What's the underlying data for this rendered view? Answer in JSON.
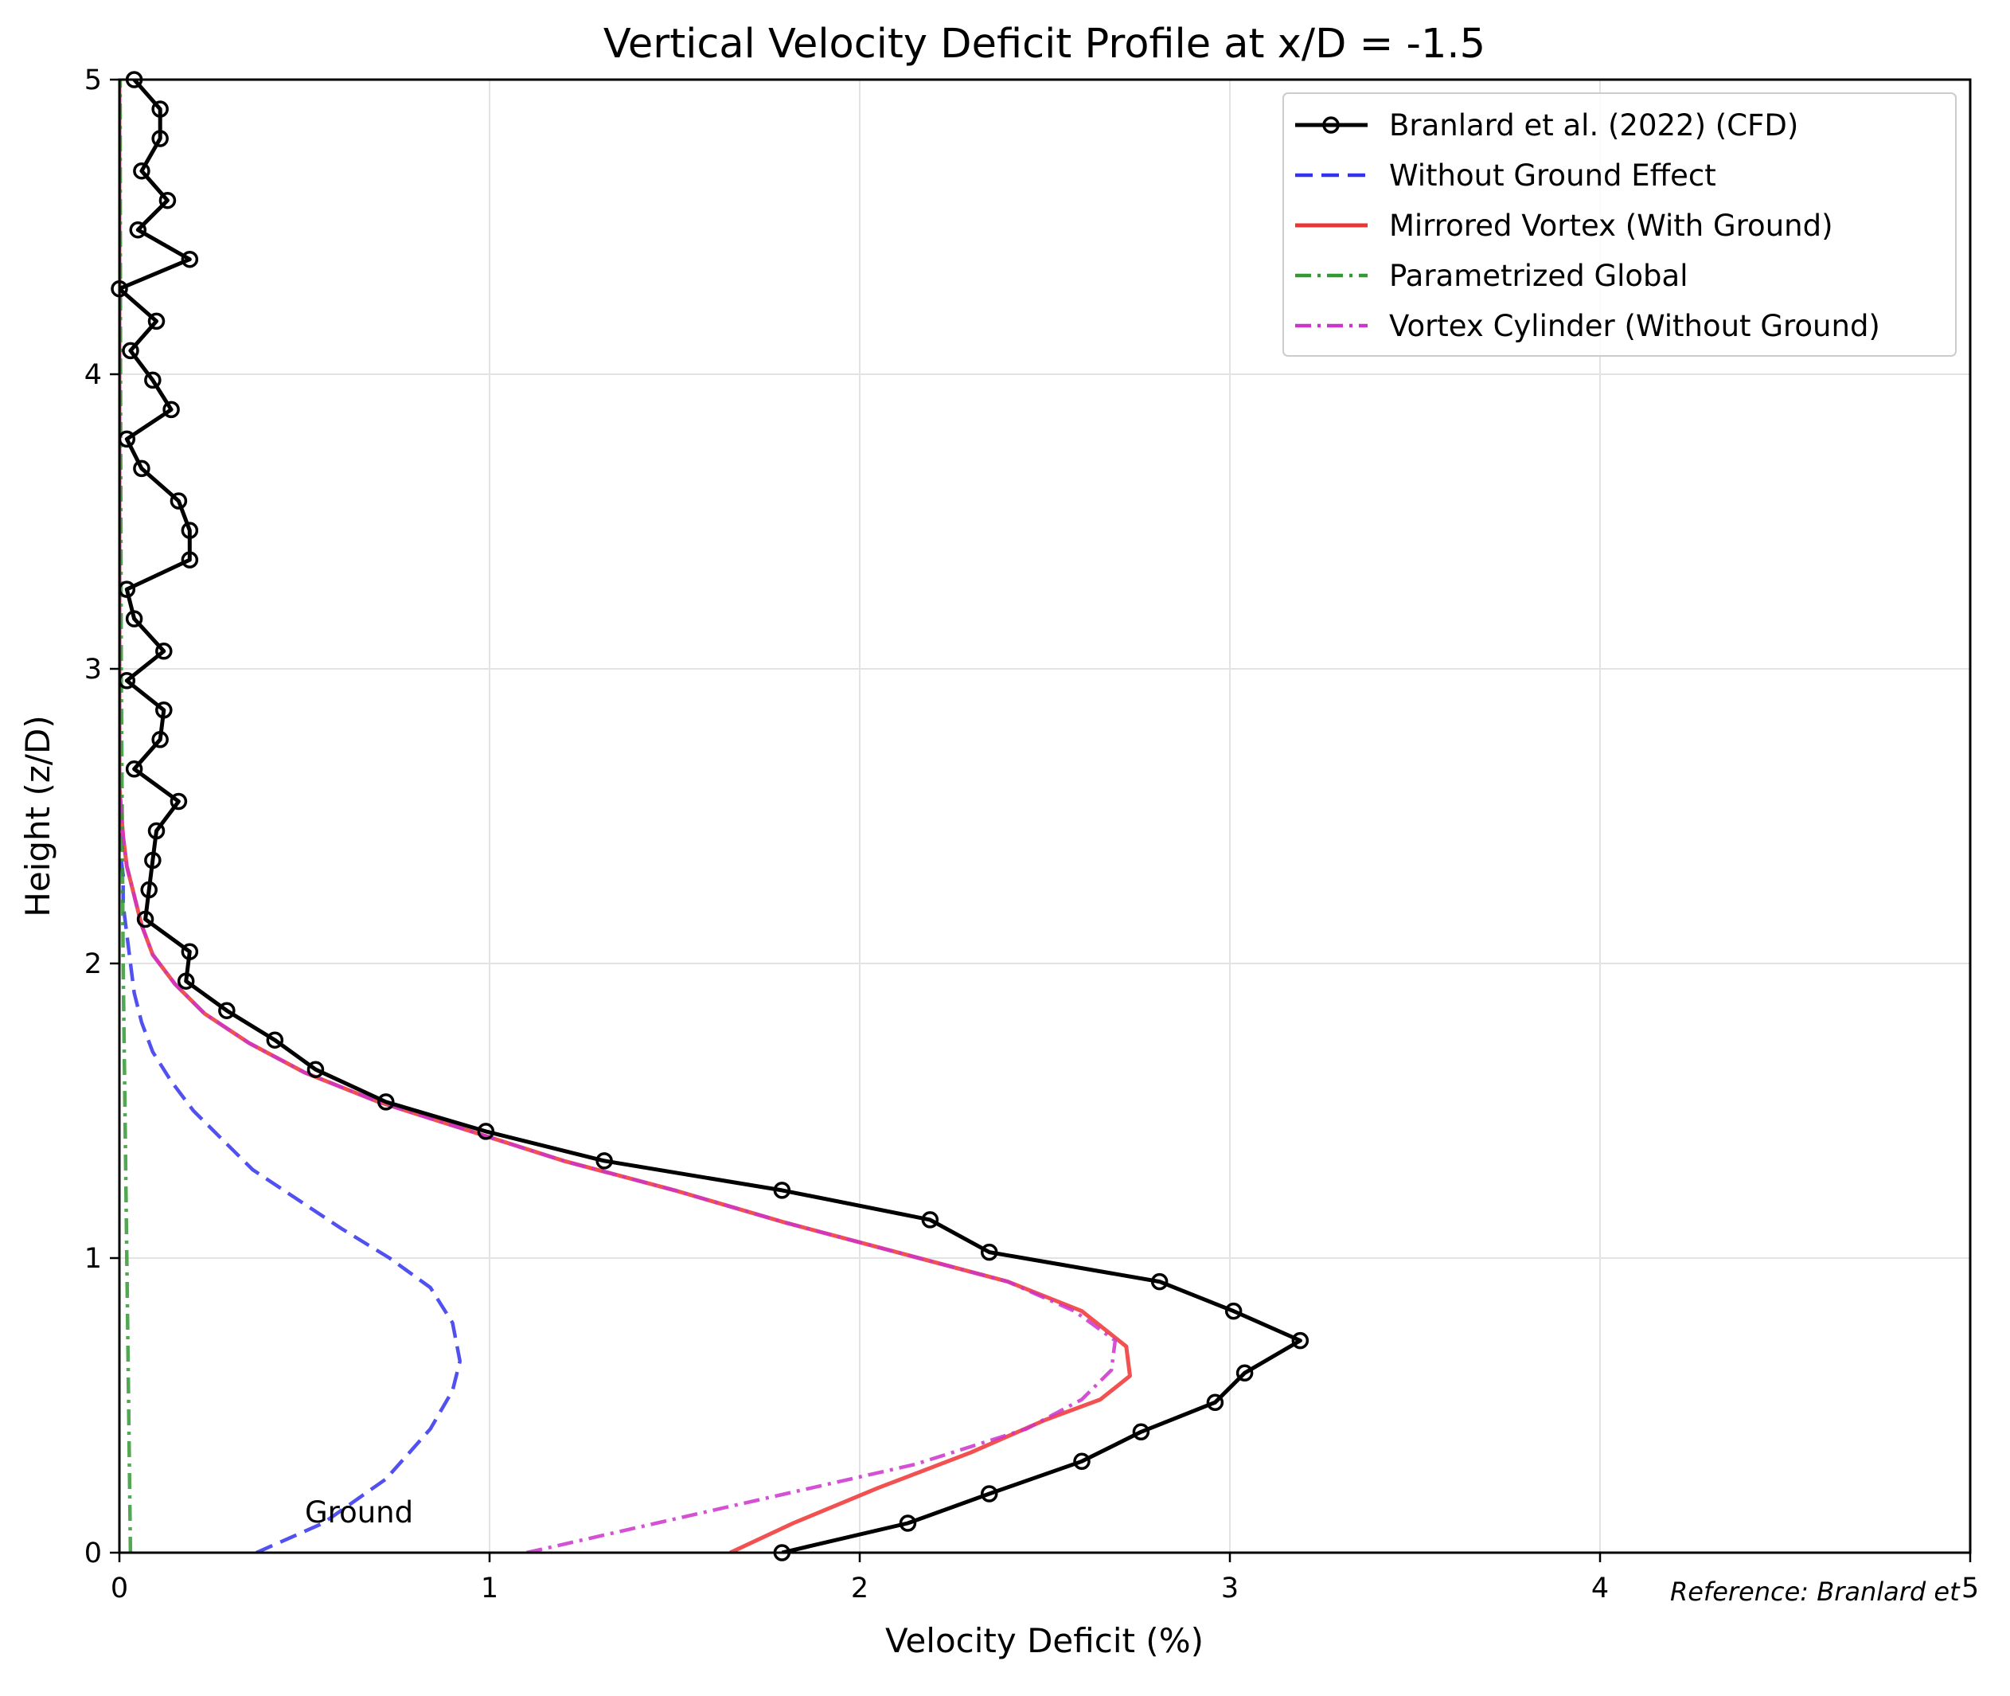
{
  "chart_data": {
    "type": "line",
    "title": "Vertical Velocity Deficit Profile at x/D = -1.5",
    "xlabel": "Velocity Deficit (%)",
    "ylabel": "Height (z/D)",
    "xlim": [
      0,
      5
    ],
    "ylim": [
      0,
      5
    ],
    "xticks": [
      "0",
      "1",
      "2",
      "3",
      "4",
      "5"
    ],
    "yticks": [
      "0",
      "1",
      "2",
      "3",
      "4",
      "5"
    ],
    "grid": true,
    "legend_position": "top-right",
    "annotations": [
      {
        "text": "Ground",
        "x": 0.5,
        "y": 0.13
      },
      {
        "text": "Reference: Branlard et",
        "x": 4.42,
        "y": -0.12
      }
    ],
    "series": [
      {
        "name": "Branlard et al. (2022) (CFD)",
        "color": "#000000",
        "style": "solid-circle-markers",
        "points": [
          [
            1.79,
            0.0
          ],
          [
            2.13,
            0.1
          ],
          [
            2.35,
            0.2
          ],
          [
            2.6,
            0.31
          ],
          [
            2.76,
            0.41
          ],
          [
            2.96,
            0.51
          ],
          [
            3.04,
            0.61
          ],
          [
            3.19,
            0.72
          ],
          [
            3.01,
            0.82
          ],
          [
            2.81,
            0.92
          ],
          [
            2.35,
            1.02
          ],
          [
            2.19,
            1.13
          ],
          [
            1.79,
            1.23
          ],
          [
            1.31,
            1.33
          ],
          [
            0.99,
            1.43
          ],
          [
            0.72,
            1.53
          ],
          [
            0.53,
            1.64
          ],
          [
            0.42,
            1.74
          ],
          [
            0.29,
            1.84
          ],
          [
            0.18,
            1.94
          ],
          [
            0.19,
            2.04
          ],
          [
            0.07,
            2.15
          ],
          [
            0.08,
            2.25
          ],
          [
            0.09,
            2.35
          ],
          [
            0.1,
            2.45
          ],
          [
            0.16,
            2.55
          ],
          [
            0.04,
            2.66
          ],
          [
            0.11,
            2.76
          ],
          [
            0.12,
            2.86
          ],
          [
            0.02,
            2.96
          ],
          [
            0.12,
            3.06
          ],
          [
            0.04,
            3.17
          ],
          [
            0.02,
            3.27
          ],
          [
            0.19,
            3.37
          ],
          [
            0.19,
            3.47
          ],
          [
            0.16,
            3.57
          ],
          [
            0.06,
            3.68
          ],
          [
            0.02,
            3.78
          ],
          [
            0.14,
            3.88
          ],
          [
            0.09,
            3.98
          ],
          [
            0.03,
            4.08
          ],
          [
            0.1,
            4.18
          ],
          [
            0.0,
            4.29
          ],
          [
            0.19,
            4.39
          ],
          [
            0.05,
            4.49
          ],
          [
            0.13,
            4.59
          ],
          [
            0.06,
            4.69
          ],
          [
            0.11,
            4.8
          ],
          [
            0.11,
            4.9
          ],
          [
            0.04,
            5.0
          ]
        ]
      },
      {
        "name": "Without Ground Effect",
        "color": "#3333ee",
        "style": "dashed",
        "points": [
          [
            0.37,
            0.0
          ],
          [
            0.55,
            0.1
          ],
          [
            0.72,
            0.25
          ],
          [
            0.84,
            0.42
          ],
          [
            0.9,
            0.55
          ],
          [
            0.92,
            0.65
          ],
          [
            0.9,
            0.78
          ],
          [
            0.84,
            0.9
          ],
          [
            0.73,
            1.0
          ],
          [
            0.6,
            1.1
          ],
          [
            0.48,
            1.2
          ],
          [
            0.36,
            1.3
          ],
          [
            0.28,
            1.4
          ],
          [
            0.2,
            1.5
          ],
          [
            0.14,
            1.6
          ],
          [
            0.09,
            1.7
          ],
          [
            0.06,
            1.8
          ],
          [
            0.04,
            1.9
          ],
          [
            0.03,
            2.0
          ],
          [
            0.02,
            2.1
          ],
          [
            0.01,
            2.2
          ],
          [
            0.01,
            2.3
          ],
          [
            0.0,
            2.4
          ],
          [
            0.0,
            5.0
          ]
        ]
      },
      {
        "name": "Mirrored Vortex (With Ground)",
        "color": "#ee3333",
        "style": "solid",
        "points": [
          [
            1.65,
            0.0
          ],
          [
            1.82,
            0.1
          ],
          [
            2.05,
            0.22
          ],
          [
            2.3,
            0.34
          ],
          [
            2.5,
            0.45
          ],
          [
            2.65,
            0.52
          ],
          [
            2.73,
            0.6
          ],
          [
            2.72,
            0.7
          ],
          [
            2.6,
            0.82
          ],
          [
            2.4,
            0.92
          ],
          [
            2.1,
            1.02
          ],
          [
            1.8,
            1.12
          ],
          [
            1.5,
            1.23
          ],
          [
            1.2,
            1.33
          ],
          [
            0.95,
            1.43
          ],
          [
            0.7,
            1.53
          ],
          [
            0.5,
            1.63
          ],
          [
            0.35,
            1.73
          ],
          [
            0.23,
            1.83
          ],
          [
            0.15,
            1.93
          ],
          [
            0.09,
            2.03
          ],
          [
            0.06,
            2.13
          ],
          [
            0.04,
            2.23
          ],
          [
            0.02,
            2.33
          ],
          [
            0.01,
            2.43
          ],
          [
            0.0,
            2.6
          ],
          [
            0.0,
            5.0
          ]
        ]
      },
      {
        "name": "Parametrized Global",
        "color": "#339933",
        "style": "dashdot",
        "points": [
          [
            0.03,
            0.0
          ],
          [
            0.02,
            1.0
          ],
          [
            0.01,
            2.0
          ],
          [
            0.005,
            3.0
          ],
          [
            0.003,
            4.0
          ],
          [
            0.002,
            5.0
          ]
        ]
      },
      {
        "name": "Vortex Cylinder (Without Ground)",
        "color": "#cc33cc",
        "style": "dashdot",
        "points": [
          [
            1.1,
            0.0
          ],
          [
            1.45,
            0.1
          ],
          [
            1.8,
            0.2
          ],
          [
            2.15,
            0.3
          ],
          [
            2.45,
            0.42
          ],
          [
            2.6,
            0.52
          ],
          [
            2.68,
            0.62
          ],
          [
            2.69,
            0.72
          ],
          [
            2.58,
            0.82
          ],
          [
            2.4,
            0.92
          ],
          [
            2.1,
            1.02
          ],
          [
            1.8,
            1.12
          ],
          [
            1.5,
            1.23
          ],
          [
            1.2,
            1.33
          ],
          [
            0.95,
            1.43
          ],
          [
            0.7,
            1.53
          ],
          [
            0.5,
            1.63
          ],
          [
            0.35,
            1.73
          ],
          [
            0.23,
            1.83
          ],
          [
            0.15,
            1.93
          ],
          [
            0.09,
            2.03
          ],
          [
            0.06,
            2.13
          ],
          [
            0.04,
            2.23
          ],
          [
            0.02,
            2.33
          ],
          [
            0.01,
            2.43
          ],
          [
            0.0,
            2.6
          ],
          [
            0.0,
            5.0
          ]
        ]
      }
    ]
  }
}
